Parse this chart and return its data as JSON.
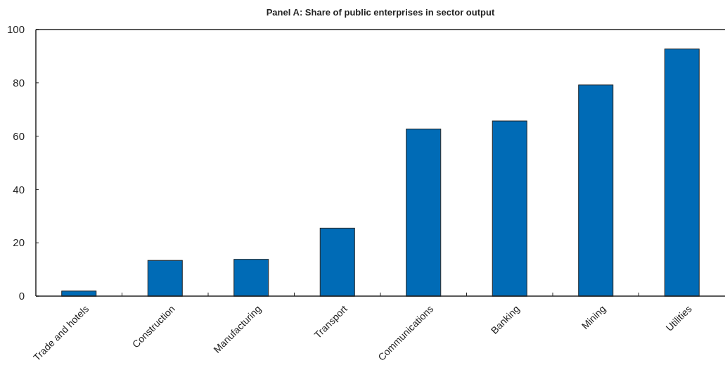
{
  "chart_data": {
    "type": "bar",
    "title": "Panel A: Share of public enterprises in sector output",
    "categories": [
      "Trade and hotels",
      "Construction",
      "Manufacturing",
      "Transport",
      "Communications",
      "Banking",
      "Mining",
      "Utilities"
    ],
    "values": [
      1.9,
      13.4,
      13.8,
      25.5,
      62.7,
      65.7,
      79.2,
      92.7
    ],
    "color": "#006bb6",
    "ylim": [
      0,
      100
    ],
    "yticks": [
      0,
      20,
      40,
      60,
      80,
      100
    ],
    "grid": false
  }
}
